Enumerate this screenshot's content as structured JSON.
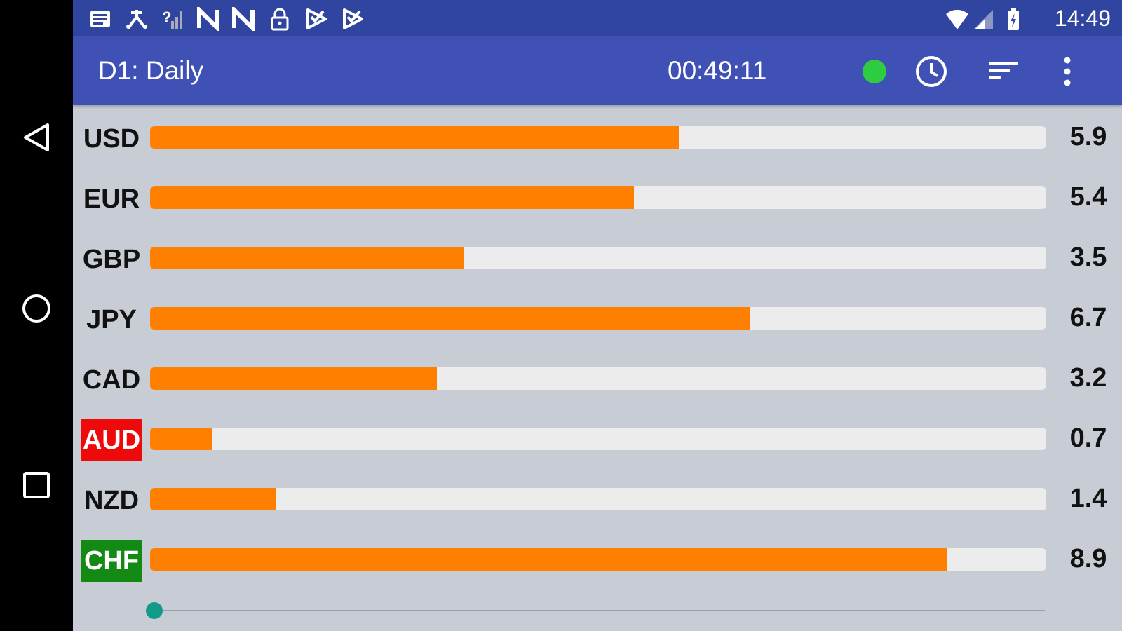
{
  "status_bar": {
    "time": "14:49",
    "icons": [
      "notes-icon",
      "usb-icon",
      "no-signal-icon",
      "n-app-icon",
      "n-app-icon",
      "lock-icon",
      "play-store-icon",
      "play-store-icon",
      "wifi-icon",
      "cell-signal-icon",
      "battery-icon"
    ]
  },
  "toolbar": {
    "title": "D1: Daily",
    "timer": "00:49:11",
    "status_color": "#2ecc40",
    "actions": [
      "clock-icon",
      "sort-icon",
      "more-vert-icon"
    ]
  },
  "navigation": [
    "back-icon",
    "home-icon",
    "recents-icon"
  ],
  "scale_max": 10,
  "rows": [
    {
      "currency": "USD",
      "value": "5.9",
      "fraction": 0.59,
      "highlight": ""
    },
    {
      "currency": "EUR",
      "value": "5.4",
      "fraction": 0.54,
      "highlight": ""
    },
    {
      "currency": "GBP",
      "value": "3.5",
      "fraction": 0.35,
      "highlight": ""
    },
    {
      "currency": "JPY",
      "value": "6.7",
      "fraction": 0.67,
      "highlight": ""
    },
    {
      "currency": "CAD",
      "value": "3.2",
      "fraction": 0.32,
      "highlight": ""
    },
    {
      "currency": "AUD",
      "value": "0.7",
      "fraction": 0.07,
      "highlight": "weakest"
    },
    {
      "currency": "NZD",
      "value": "1.4",
      "fraction": 0.14,
      "highlight": ""
    },
    {
      "currency": "CHF",
      "value": "8.9",
      "fraction": 0.89,
      "highlight": "strongest"
    }
  ],
  "colors": {
    "bar_fill": "#ff7f00",
    "bar_track": "#ececec",
    "weakest": "#ee0a0a",
    "strongest": "#138a13",
    "toolbar": "#3f51b5",
    "status_bar": "#3045a0"
  },
  "slider": {
    "position": 0.0
  }
}
